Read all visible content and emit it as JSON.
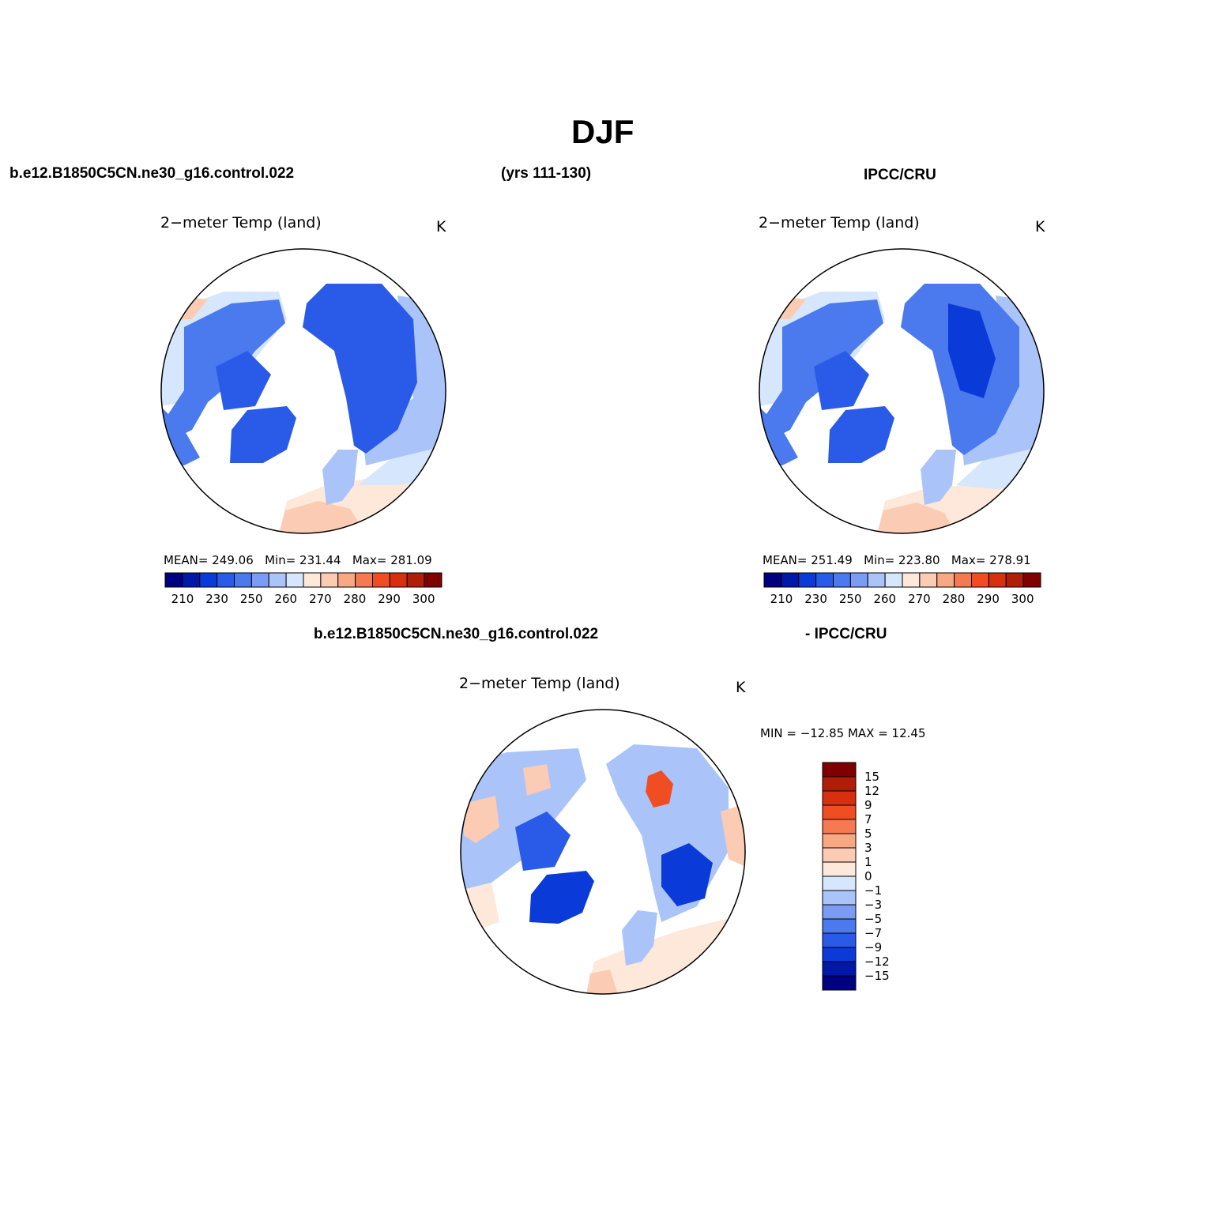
{
  "figure": {
    "season": "DJF",
    "case_name": "b.e12.B1850C5CN.ne30_g16.control.022",
    "years": "(yrs 111-130)",
    "obs_name": "IPCC/CRU",
    "diff_suffix": "- IPCC/CRU"
  },
  "panels": [
    {
      "title": "2−meter Temp (land)",
      "units": "K",
      "mean_label": "MEAN=",
      "mean": "249.06",
      "min_label": "Min=",
      "min": "231.44",
      "max_label": "Max=",
      "max": "281.09"
    },
    {
      "title": "2−meter Temp (land)",
      "units": "K",
      "mean_label": "MEAN=",
      "mean": "251.49",
      "min_label": "Min=",
      "min": "223.80",
      "max_label": "Max=",
      "max": "278.91"
    },
    {
      "title": "2−meter Temp (land)",
      "units": "K",
      "minmax": "MIN = −12.85 MAX =   12.45"
    }
  ],
  "colors": {
    "temp_scale": [
      "#000080",
      "#0018a8",
      "#0a3ad8",
      "#2a5ae8",
      "#4a7aee",
      "#7a9cf4",
      "#aac4fa",
      "#d6e6fc",
      "#fde8da",
      "#fbcbb4",
      "#f8a882",
      "#f57a52",
      "#f04e22",
      "#d8300e",
      "#b01e08",
      "#800000"
    ],
    "diff_scale": [
      "#000080",
      "#0018a8",
      "#0a3ad8",
      "#2a5ae8",
      "#4a7aee",
      "#7a9cf4",
      "#aac4fa",
      "#d6e6fc",
      "#fde8da",
      "#fbcbb4",
      "#f8a882",
      "#f57a52",
      "#f04e22",
      "#d8300e",
      "#b01e08",
      "#800000"
    ],
    "land_mask": "#ffffff"
  },
  "colorbar_temp": {
    "labels": [
      "210",
      "230",
      "250",
      "260",
      "270",
      "280",
      "290",
      "300"
    ]
  },
  "colorbar_diff": {
    "labels": [
      "15",
      "12",
      "9",
      "7",
      "5",
      "3",
      "1",
      "0",
      "−1",
      "−3",
      "−5",
      "−7",
      "−9",
      "−12",
      "−15"
    ]
  }
}
